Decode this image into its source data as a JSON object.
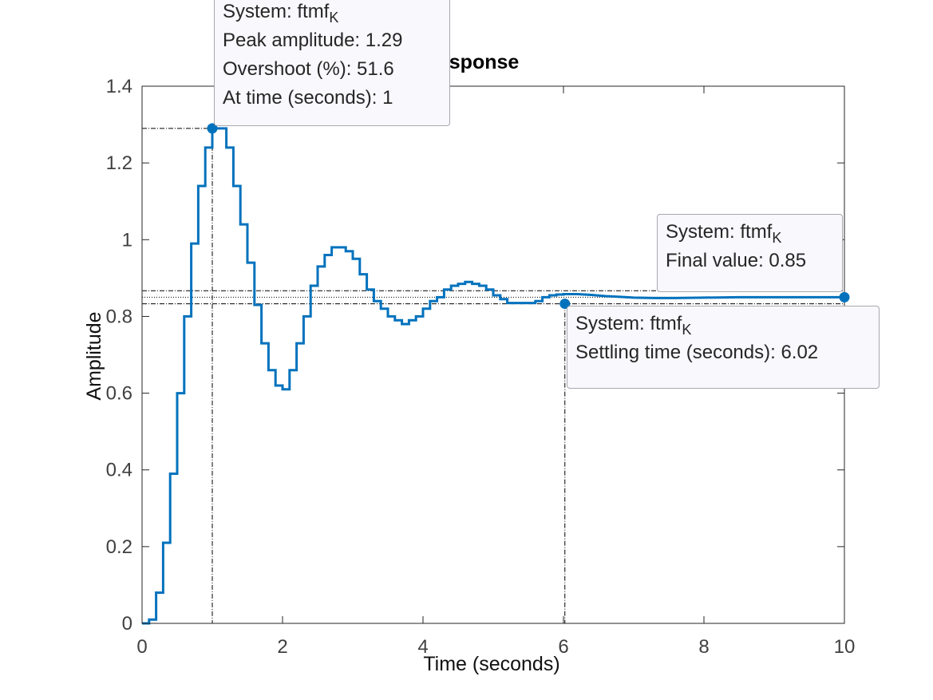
{
  "chart_data": {
    "type": "line",
    "title": "Step Response",
    "xlabel": "Time (seconds)",
    "ylabel": "Amplitude",
    "xlim": [
      0,
      10
    ],
    "ylim": [
      0,
      1.4
    ],
    "xticks": [
      "0",
      "2",
      "4",
      "6",
      "8",
      "10"
    ],
    "yticks": [
      "0",
      "0.2",
      "0.4",
      "0.6",
      "0.8",
      "1",
      "1.2",
      "1.4"
    ],
    "grid": false,
    "series_color": "#0072BD",
    "series": [
      {
        "step": true,
        "x": [
          0,
          0.1,
          0.2,
          0.3,
          0.4,
          0.5,
          0.6,
          0.7,
          0.8,
          0.9,
          1.0,
          1.1,
          1.2,
          1.3,
          1.4,
          1.5,
          1.6,
          1.7,
          1.8,
          1.9,
          2.0,
          2.1,
          2.2,
          2.3,
          2.4,
          2.5,
          2.6,
          2.7,
          2.8,
          2.9,
          3.0,
          3.1,
          3.2,
          3.3,
          3.4,
          3.5,
          3.6,
          3.7,
          3.8,
          3.9,
          4.0,
          4.1,
          4.2,
          4.3,
          4.4,
          4.5,
          4.6,
          4.7,
          4.8,
          4.9,
          5.0,
          5.1,
          5.2,
          5.3,
          5.4,
          5.5,
          5.6,
          5.7,
          5.8,
          5.9,
          6.0,
          6.2,
          6.4,
          6.6,
          6.8,
          7.0,
          7.3,
          7.6,
          8.0,
          8.5,
          9.0,
          9.5,
          10.0
        ],
        "y": [
          0.0,
          0.01,
          0.08,
          0.21,
          0.39,
          0.6,
          0.8,
          0.99,
          1.14,
          1.24,
          1.29,
          1.29,
          1.24,
          1.14,
          1.04,
          0.94,
          0.83,
          0.73,
          0.66,
          0.62,
          0.61,
          0.66,
          0.73,
          0.8,
          0.88,
          0.93,
          0.96,
          0.98,
          0.98,
          0.97,
          0.95,
          0.91,
          0.87,
          0.84,
          0.82,
          0.8,
          0.79,
          0.78,
          0.79,
          0.8,
          0.82,
          0.84,
          0.85,
          0.87,
          0.88,
          0.885,
          0.89,
          0.885,
          0.88,
          0.87,
          0.855,
          0.845,
          0.835,
          0.835,
          0.835,
          0.835,
          0.84,
          0.85,
          0.855,
          0.857,
          0.858,
          0.858,
          0.856,
          0.853,
          0.851,
          0.849,
          0.848,
          0.848,
          0.849,
          0.85,
          0.85,
          0.85,
          0.85
        ]
      }
    ],
    "annotations": {
      "peak": {
        "x": 1,
        "y": 1.29,
        "system_label": "System: ftmf",
        "system_sub": "K",
        "lines": [
          "Peak amplitude: 1.29",
          "Overshoot (%): 51.6",
          "At time (seconds): 1"
        ]
      },
      "final": {
        "x": 10,
        "y": 0.85,
        "system_label": "System: ftmf",
        "system_sub": "K",
        "lines": [
          "Final value: 0.85"
        ]
      },
      "settling": {
        "x": 6.02,
        "y": 0.833,
        "system_label": "System: ftmf",
        "system_sub": "K",
        "lines": [
          "Settling time (seconds): 6.02"
        ]
      },
      "settling_band": [
        0.833,
        0.867
      ]
    }
  }
}
